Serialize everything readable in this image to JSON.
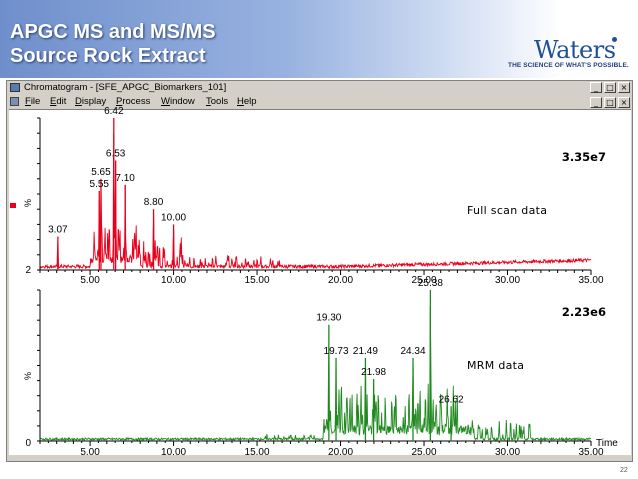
{
  "slide": {
    "title_line1": "APGC MS and MS/MS",
    "title_line2": "Source Rock Extract",
    "brand": "Waters",
    "tagline": "THE SCIENCE OF WHAT'S POSSIBLE.",
    "page_number": "22"
  },
  "window": {
    "title": "Chromatogram - [SFE_APGC_Biomarkers_101]",
    "buttons": {
      "minimize": "_",
      "restore": "□",
      "close": "×"
    },
    "menu": [
      {
        "label": "File",
        "u": "F",
        "rest": "ile"
      },
      {
        "label": "Edit",
        "u": "E",
        "rest": "dit"
      },
      {
        "label": "Display",
        "u": "D",
        "rest": "isplay"
      },
      {
        "label": "Process",
        "u": "P",
        "rest": "rocess"
      },
      {
        "label": "Window",
        "u": "W",
        "rest": "indow"
      },
      {
        "label": "Tools",
        "u": "T",
        "rest": "ools"
      },
      {
        "label": "Help",
        "u": "H",
        "rest": "elp"
      }
    ]
  },
  "chart_data": [
    {
      "type": "line",
      "title": "",
      "annotation_scale": "3.35e7",
      "annotation_label": "Full scan data",
      "color": "#e8001c",
      "ylabel": "%",
      "y_min_label": "2",
      "xlim": [
        2.0,
        35.0
      ],
      "x_ticks": [
        "5.00",
        "10.00",
        "15.00",
        "20.00",
        "25.00",
        "30.00",
        "35.00"
      ],
      "peaks": [
        {
          "x": 3.07,
          "y": 22,
          "label": "3.07"
        },
        {
          "x": 5.55,
          "y": 52,
          "label": "5.55"
        },
        {
          "x": 5.65,
          "y": 60,
          "label": "5.65"
        },
        {
          "x": 6.42,
          "y": 100,
          "label": "6.42"
        },
        {
          "x": 6.53,
          "y": 72,
          "label": "6.53"
        },
        {
          "x": 7.1,
          "y": 56,
          "label": "7.10"
        },
        {
          "x": 8.8,
          "y": 40,
          "label": "8.80"
        },
        {
          "x": 10.0,
          "y": 30,
          "label": "10.00"
        }
      ]
    },
    {
      "type": "line",
      "title": "",
      "annotation_scale": "2.23e6",
      "annotation_label": "MRM data",
      "color": "#1f8a1f",
      "ylabel": "%",
      "y_min_label": "0",
      "xlabel": "Time",
      "xlim": [
        2.0,
        35.0
      ],
      "x_ticks": [
        "5.00",
        "10.00",
        "15.00",
        "20.00",
        "25.00",
        "30.00",
        "35.00"
      ],
      "peaks": [
        {
          "x": 19.3,
          "y": 77,
          "label": "19.30"
        },
        {
          "x": 19.73,
          "y": 55,
          "label": "19.73"
        },
        {
          "x": 21.49,
          "y": 55,
          "label": "21.49"
        },
        {
          "x": 21.98,
          "y": 41,
          "label": "21.98"
        },
        {
          "x": 24.34,
          "y": 55,
          "label": "24.34"
        },
        {
          "x": 25.38,
          "y": 100,
          "label": "25.38"
        },
        {
          "x": 26.62,
          "y": 23,
          "label": "26.62"
        }
      ]
    }
  ]
}
